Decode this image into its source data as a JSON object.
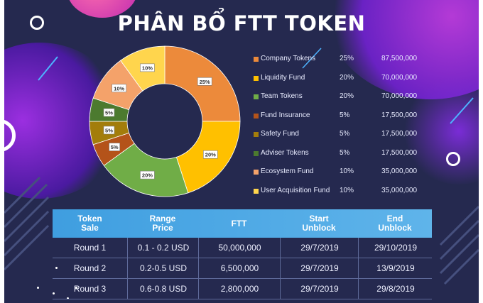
{
  "title": "PHÂN BỔ FTT TOKEN",
  "colors": {
    "background": "#25294f",
    "accent_purple": "#7b2bd9",
    "accent_pink": "#d43db5",
    "table_header": "#4aa8e6"
  },
  "chart_data": {
    "type": "pie",
    "donut": true,
    "slices": [
      {
        "name": "Company Tokens",
        "percent": 25,
        "amount": "87,500,000",
        "label": "25%",
        "color": "#ec8a3b"
      },
      {
        "name": "Liquidity Fund",
        "percent": 20,
        "amount": "70,000,000",
        "label": "20%",
        "color": "#ffc000"
      },
      {
        "name": "Team Tokens",
        "percent": 20,
        "amount": "70,000,000",
        "label": "20%",
        "color": "#70ad47"
      },
      {
        "name": "Fund Insurance",
        "percent": 5,
        "amount": "17,500,000",
        "label": "5%",
        "color": "#b4531a"
      },
      {
        "name": "Safety Fund",
        "percent": 5,
        "amount": "17,500,000",
        "label": "5%",
        "color": "#a37d0b"
      },
      {
        "name": "Adviser Tokens",
        "percent": 5,
        "amount": "17,500,000",
        "label": "5%",
        "color": "#4c7a2f"
      },
      {
        "name": "Ecosystem Fund",
        "percent": 10,
        "amount": "35,000,000",
        "label": "10%",
        "color": "#f4a26a"
      },
      {
        "name": "User Acquisition Fund",
        "percent": 10,
        "amount": "35,000,000",
        "label": "10%",
        "color": "#ffd54d"
      }
    ],
    "legend_placement": "right"
  },
  "table": {
    "headers": [
      "Token\nSale",
      "Range\nPrice",
      "FTT",
      "Start\nUnblock",
      "End\nUnblock"
    ],
    "rows": [
      [
        "Round 1",
        "0.1 - 0.2 USD",
        "50,000,000",
        "29/7/2019",
        "29/10/2019"
      ],
      [
        "Round 2",
        "0.2-0.5 USD",
        "6,500,000",
        "29/7/2019",
        "13/9/2019"
      ],
      [
        "Round 3",
        "0.6-0.8 USD",
        "2,800,000",
        "29/7/2019",
        "29/8/2019"
      ]
    ]
  }
}
